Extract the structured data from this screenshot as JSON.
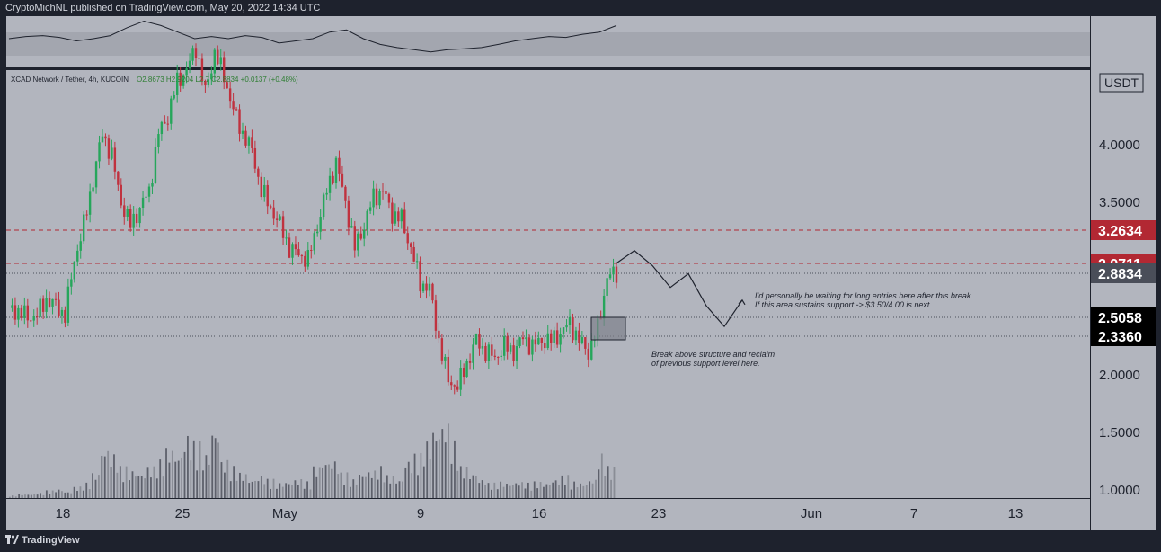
{
  "header": {
    "publisher": "CryptoMichNL published on TradingView.com, May 20, 2022 14:34 UTC"
  },
  "footer": {
    "brand": "TradingView"
  },
  "chart_data": {
    "type": "candlestick",
    "symbol_line": "XCAD Network / Tether, 4h, KUCOIN",
    "ohlc_line": "O2.8673 H2.9204 L2.7 C2.8834 +0.0137 (+0.48%)",
    "currency": "USDT",
    "y_ticks": [
      "4.0000",
      "3.5000",
      "3.0000",
      "2.5000",
      "2.0000",
      "1.5000",
      "1.0000"
    ],
    "y_tick_values": [
      4.0,
      3.5,
      3.0,
      2.5,
      2.0,
      1.5,
      1.0
    ],
    "x_ticks": [
      "18",
      "25",
      "May",
      "9",
      "16",
      "23",
      "Jun",
      "7",
      "13"
    ],
    "levels": [
      {
        "label": "3.2634",
        "value": 3.2634,
        "style": "dashed",
        "color": "#b22833"
      },
      {
        "label": "2.9711",
        "value": 2.9711,
        "style": "dashed",
        "color": "#b22833"
      },
      {
        "label": "2.8834",
        "value": 2.8834,
        "style": "dotted",
        "color": "#4a4e59"
      },
      {
        "label": "2.5058",
        "value": 2.5058,
        "style": "dotted",
        "color": "#000000"
      },
      {
        "label": "2.3360",
        "value": 2.336,
        "style": "dotted",
        "color": "#000000"
      }
    ],
    "close_series": [
      2.58,
      2.55,
      2.5,
      2.52,
      2.66,
      2.6,
      2.52,
      3.0,
      3.3,
      3.7,
      4.1,
      3.9,
      3.5,
      3.3,
      3.45,
      3.6,
      4.1,
      4.25,
      4.55,
      4.65,
      4.85,
      4.45,
      4.8,
      4.6,
      4.3,
      4.1,
      3.95,
      3.6,
      3.45,
      3.3,
      3.1,
      3.05,
      3.0,
      3.3,
      3.6,
      3.85,
      3.5,
      3.1,
      3.3,
      3.55,
      3.6,
      3.4,
      3.35,
      3.1,
      2.8,
      2.75,
      2.3,
      1.95,
      1.9,
      2.1,
      2.3,
      2.2,
      2.15,
      2.25,
      2.2,
      2.32,
      2.25,
      2.3,
      2.3,
      2.36,
      2.45,
      2.3,
      2.2,
      2.4,
      2.85,
      2.88
    ],
    "volume_series": [
      0.02,
      0.03,
      0.03,
      0.04,
      0.06,
      0.07,
      0.05,
      0.09,
      0.12,
      0.2,
      0.4,
      0.35,
      0.25,
      0.22,
      0.2,
      0.25,
      0.3,
      0.4,
      0.35,
      0.5,
      0.45,
      0.35,
      0.55,
      0.3,
      0.25,
      0.2,
      0.15,
      0.18,
      0.15,
      0.12,
      0.13,
      0.15,
      0.13,
      0.25,
      0.3,
      0.3,
      0.2,
      0.15,
      0.2,
      0.22,
      0.25,
      0.18,
      0.15,
      0.3,
      0.35,
      0.45,
      0.55,
      0.6,
      0.45,
      0.25,
      0.2,
      0.15,
      0.12,
      0.13,
      0.12,
      0.13,
      0.12,
      0.13,
      0.12,
      0.15,
      0.18,
      0.13,
      0.12,
      0.15,
      0.35,
      0.25
    ],
    "projection": [
      2.9711,
      3.08,
      2.95,
      2.76,
      2.88,
      2.6,
      2.42,
      2.65
    ],
    "oscillator": [
      0.55,
      0.6,
      0.62,
      0.58,
      0.5,
      0.55,
      0.62,
      0.8,
      0.95,
      0.85,
      0.7,
      0.55,
      0.6,
      0.55,
      0.62,
      0.58,
      0.45,
      0.5,
      0.55,
      0.7,
      0.75,
      0.55,
      0.42,
      0.35,
      0.3,
      0.25,
      0.3,
      0.32,
      0.35,
      0.42,
      0.5,
      0.55,
      0.6,
      0.58,
      0.65,
      0.7,
      0.85
    ],
    "annotations": [
      {
        "lines": [
          "I'd personally be waiting for long entries here after this break.",
          "If this area sustains support -> $3.50/4.00 is next."
        ]
      },
      {
        "lines": [
          "Break above structure and reclaim",
          "of previous support level here."
        ]
      }
    ]
  }
}
